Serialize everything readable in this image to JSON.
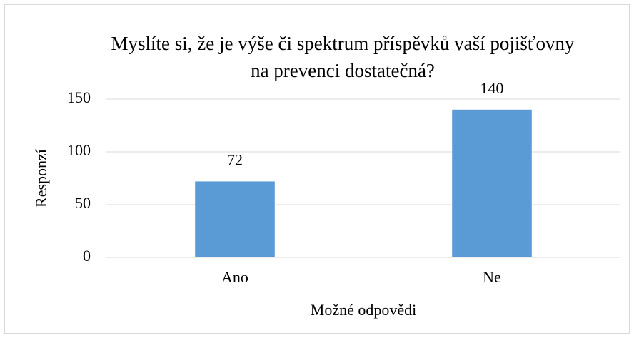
{
  "chart_data": {
    "type": "bar",
    "title": "Myslíte si, že je výše či spektrum příspěvků vaší pojišťovny na prevenci dostatečná?",
    "x_label": "Možné odpovědi",
    "y_label": "Responzí",
    "categories": [
      "Ano",
      "Ne"
    ],
    "values": [
      72,
      140
    ],
    "color": "#5b9bd5",
    "ylim": [
      0,
      150
    ],
    "yticks": [
      0,
      50,
      100,
      150
    ],
    "grid": true
  }
}
